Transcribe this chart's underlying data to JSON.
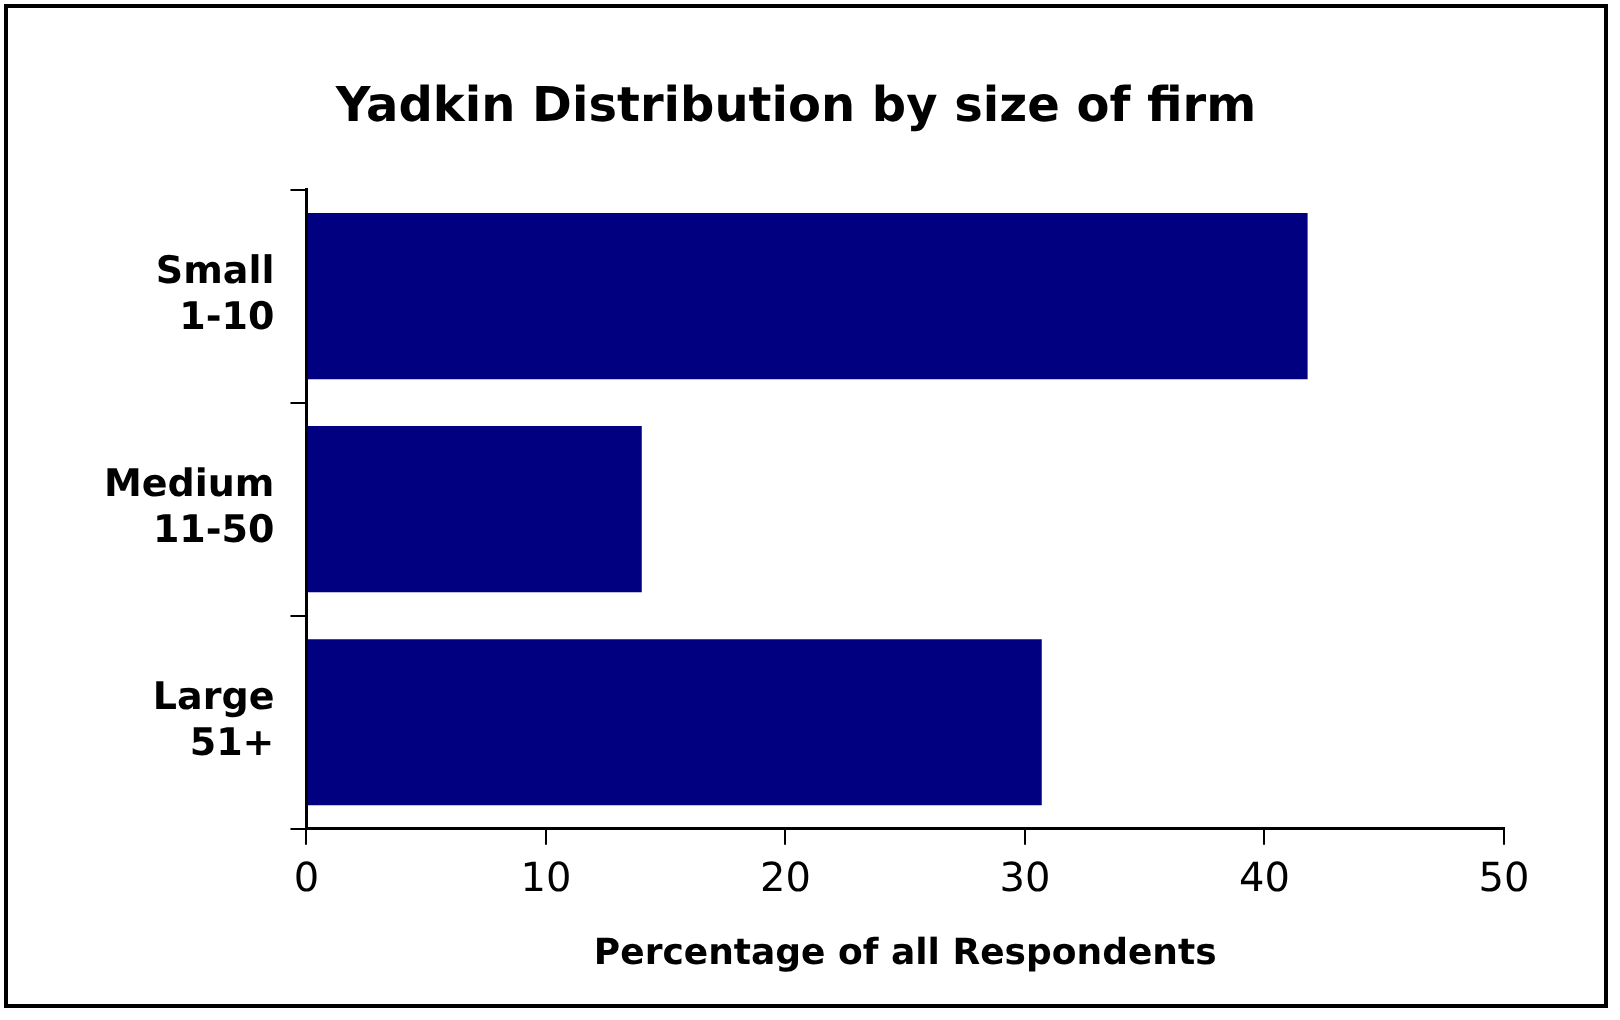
{
  "chart_data": {
    "type": "bar",
    "orientation": "horizontal",
    "title": "Yadkin Distribution by size of firm",
    "xlabel": "Percentage of all Respondents",
    "categories": [
      "Small 1-10",
      "Medium 11-50",
      "Large 51+"
    ],
    "values": [
      41.8,
      14.0,
      30.7
    ],
    "color": "#000080",
    "xlim": [
      0,
      50
    ],
    "xticks": [
      0,
      10,
      20,
      30,
      40,
      50
    ],
    "grid": false,
    "legend": false
  }
}
